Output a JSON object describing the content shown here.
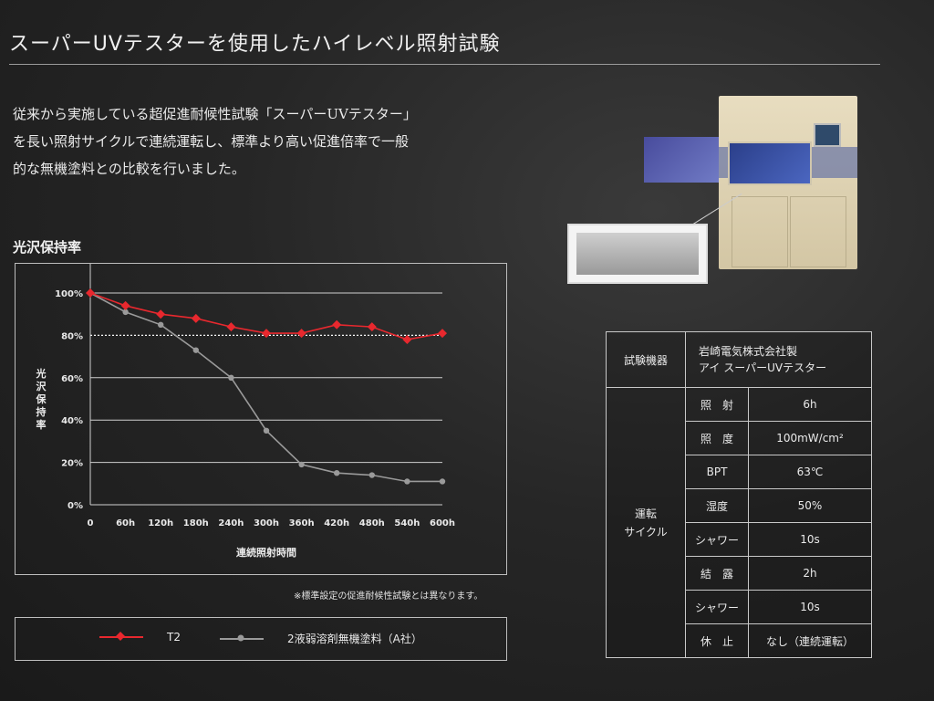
{
  "header": {
    "title": "スーパーUVテスターを使用したハイレベル照射試験"
  },
  "intro": {
    "lines": [
      "従来から実施している超促進耐候性試験「スーパーUVテスター」",
      "を長い照射サイクルで連続運転し、標準より高い促進倍率で一般",
      "的な無機塗料との比較を行いました。"
    ]
  },
  "chart_heading": "光沢保持率",
  "chart_data": {
    "type": "line",
    "title": "光沢保持率",
    "xlabel": "連続照射時間",
    "ylabel": "光沢保持率",
    "categories": [
      "0",
      "60h",
      "120h",
      "180h",
      "240h",
      "300h",
      "360h",
      "420h",
      "480h",
      "540h",
      "600h"
    ],
    "y_ticks": [
      "0%",
      "20%",
      "40%",
      "60%",
      "80%",
      "100%"
    ],
    "ylim": [
      0,
      100
    ],
    "grid": true,
    "reference_line": 80,
    "series": [
      {
        "name": "T2",
        "color": "#e8282e",
        "marker": "diamond",
        "values": [
          100,
          94,
          90,
          88,
          84,
          81,
          81,
          85,
          84,
          78,
          81
        ]
      },
      {
        "name": "2液弱溶剤無機塗料（A社）",
        "color": "#9a9a9a",
        "marker": "circle",
        "values": [
          100,
          91,
          85,
          73,
          60,
          35,
          19,
          15,
          14,
          11,
          11
        ]
      }
    ]
  },
  "note": "※標準設定の促進耐候性試験とは異なります。",
  "legend": {
    "items": [
      {
        "label": "T2",
        "color": "#e8282e"
      },
      {
        "label": "2液弱溶剤無機塗料（A社）",
        "color": "#9a9a9a"
      }
    ]
  },
  "spec": {
    "equipment_label": "試験機器",
    "equipment_value_1": "岩崎電気株式会社製",
    "equipment_value_2": "アイ スーパーUVテスター",
    "cycle_label_1": "運転",
    "cycle_label_2": "サイクル",
    "rows": [
      {
        "label": "照　射",
        "value": "6h"
      },
      {
        "label": "照　度",
        "value": "100mW/cm²"
      },
      {
        "label": "BPT",
        "value": "63℃"
      },
      {
        "label": "湿度",
        "value": "50%"
      },
      {
        "label": "シャワー",
        "value": "10s"
      },
      {
        "label": "結　露",
        "value": "2h"
      },
      {
        "label": "シャワー",
        "value": "10s"
      },
      {
        "label": "休　止",
        "value": "なし（連続運転）"
      }
    ]
  }
}
